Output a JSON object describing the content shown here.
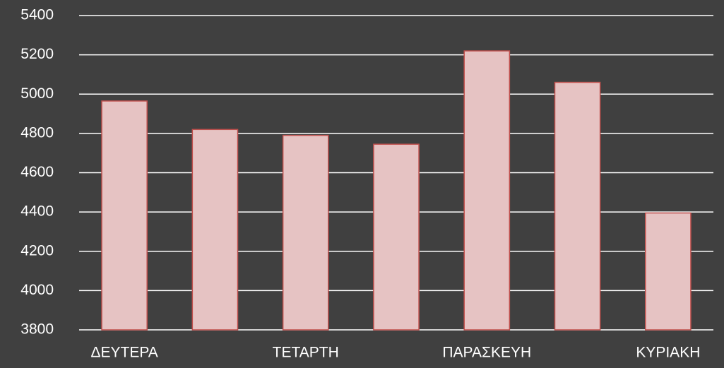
{
  "chart_data": {
    "type": "bar",
    "categories": [
      "ΔΕΥΤΕΡΑ",
      null,
      "ΤΕΤΑΡΤΗ",
      null,
      "ΠΑΡΑΣΚΕΥΗ",
      null,
      "ΚΥΡΙΑΚΗ"
    ],
    "values": [
      4965,
      4820,
      4790,
      4745,
      5220,
      5060,
      4395
    ],
    "color": "#e6c3c3",
    "edge_color": "#c0504d",
    "ylim": [
      3800,
      5400
    ],
    "yticks": [
      3800,
      4000,
      4200,
      4400,
      4600,
      4800,
      5000,
      5200,
      5400
    ],
    "grid": true
  }
}
